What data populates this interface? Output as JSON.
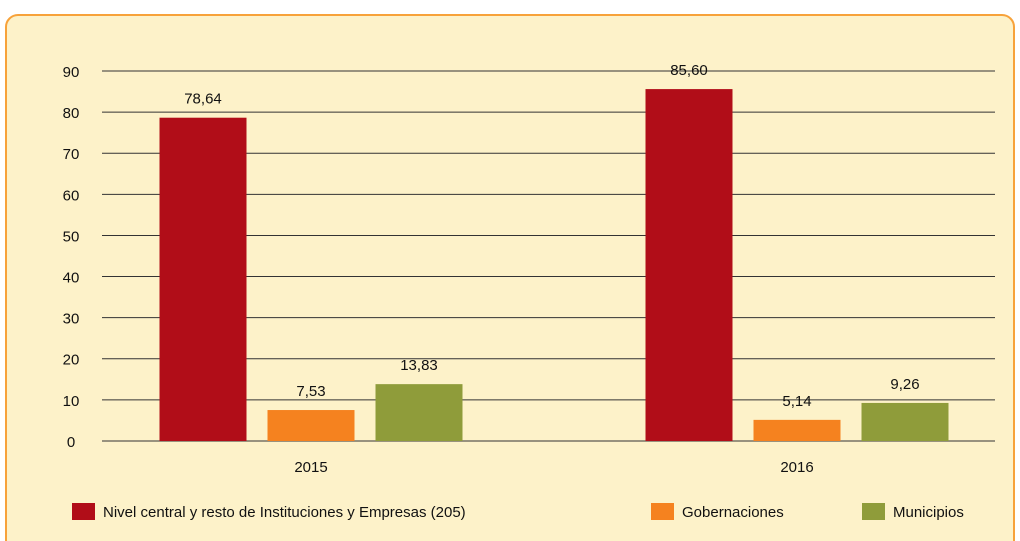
{
  "chart_data": {
    "type": "bar",
    "categories": [
      "2015",
      "2016"
    ],
    "series": [
      {
        "name": "Nivel central y resto de Instituciones y Empresas (205)",
        "color": "#b10d18",
        "values": [
          78.64,
          85.6
        ],
        "value_labels": [
          "78,64",
          "85,60"
        ]
      },
      {
        "name": "Gobernaciones",
        "color": "#f5821f",
        "values": [
          7.53,
          5.14
        ],
        "value_labels": [
          "7,53",
          "5,14"
        ]
      },
      {
        "name": "Municipios",
        "color": "#8f9c3a",
        "values": [
          13.83,
          9.26
        ],
        "value_labels": [
          "13,83",
          "9,26"
        ]
      }
    ],
    "ylim": [
      0,
      90
    ],
    "yticks": [
      0,
      10,
      20,
      30,
      40,
      50,
      60,
      70,
      80,
      90
    ],
    "grid": true,
    "legend": "bottom"
  }
}
